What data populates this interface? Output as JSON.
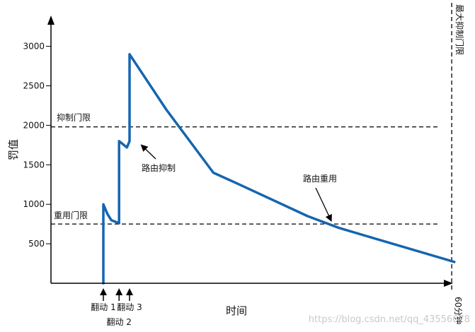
{
  "chart_data": {
    "type": "line",
    "xlabel": "时间",
    "ylabel": "罚值",
    "ylim": [
      0,
      3000
    ],
    "yticks": [
      500,
      1000,
      1500,
      2000,
      2500,
      3000
    ],
    "grid": false,
    "series": [
      {
        "color": "#1565b0",
        "points": [
          {
            "x": 0.0,
            "y": 0
          },
          {
            "x": 0.0,
            "y": 1000
          },
          {
            "x": 0.75,
            "y": 880
          },
          {
            "x": 1.5,
            "y": 800
          },
          {
            "x": 3.0,
            "y": 760
          },
          {
            "x": 3.0,
            "y": 1800
          },
          {
            "x": 4.5,
            "y": 1720
          },
          {
            "x": 5.0,
            "y": 1800
          },
          {
            "x": 5.0,
            "y": 2900
          },
          {
            "x": 12.0,
            "y": 2200
          },
          {
            "x": 21.0,
            "y": 1400
          },
          {
            "x": 26.0,
            "y": 1250
          },
          {
            "x": 39.0,
            "y": 850
          },
          {
            "x": 45.0,
            "y": 700
          },
          {
            "x": 67.0,
            "y": 270
          }
        ]
      }
    ],
    "reference_lines": [
      {
        "label": "抑制门限",
        "y": 1980
      },
      {
        "label": "重用门限",
        "y": 750
      },
      {
        "label": "最大抑制门限",
        "x": 66.5,
        "orientation": "vertical"
      }
    ],
    "events": [
      {
        "label": "翻动 1",
        "x": 0
      },
      {
        "label": "翻动 2",
        "x": 3
      },
      {
        "label": "翻动 3",
        "x": 5
      }
    ],
    "x_marker": {
      "label": "60分钟",
      "x": 66.5
    },
    "annotations": [
      {
        "text": "路由抑制",
        "point": {
          "x": 6.5,
          "y": 1800
        }
      },
      {
        "text": "路由重用",
        "point": {
          "x": 42.8,
          "y": 750
        }
      }
    ],
    "colors": {
      "line": "#1565b0",
      "axis": "#000000"
    }
  },
  "watermark": "https://blog.csdn.net/qq_43556678"
}
